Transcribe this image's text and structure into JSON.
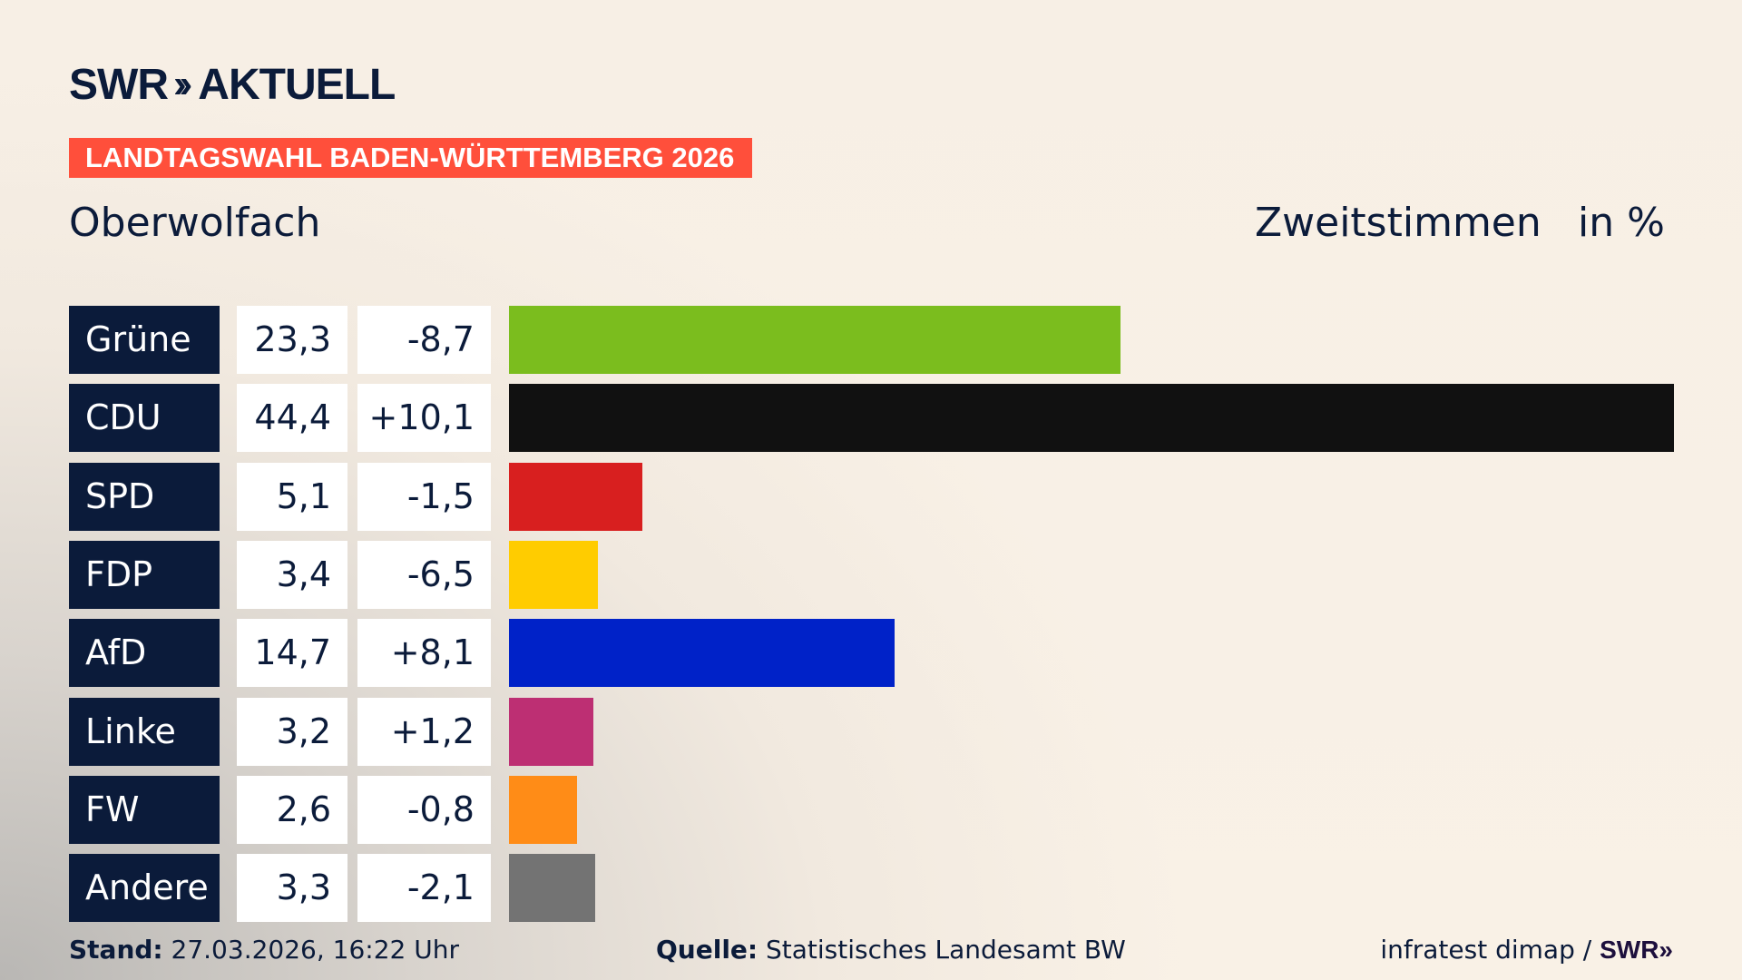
{
  "header": {
    "logo_text": "SWR",
    "logo_suffix": "AKTUELL",
    "banner": "LANDTAGSWAHL BADEN-WÜRTTEMBERG 2026",
    "region": "Oberwolfach",
    "measure": "Zweitstimmen",
    "unit": "in %"
  },
  "chart_data": {
    "type": "bar",
    "orientation": "horizontal",
    "categories": [
      "Grüne",
      "CDU",
      "SPD",
      "FDP",
      "AfD",
      "Linke",
      "FW",
      "Andere"
    ],
    "values": [
      23.3,
      44.4,
      5.1,
      3.4,
      14.7,
      3.2,
      2.6,
      3.3
    ],
    "value_labels": [
      "23,3",
      "44,4",
      "5,1",
      "3,4",
      "14,7",
      "3,2",
      "2,6",
      "3,3"
    ],
    "change_labels": [
      "-8,7",
      "+10,1",
      "-1,5",
      "-6,5",
      "+8,1",
      "+1,2",
      "-0,8",
      "-2,1"
    ],
    "changes": [
      -8.7,
      10.1,
      -1.5,
      -6.5,
      8.1,
      1.2,
      -0.8,
      -2.1
    ],
    "colors": [
      "#7bbd1e",
      "#111111",
      "#d81f1f",
      "#ffcc00",
      "#0022c8",
      "#bd2f73",
      "#ff8c17",
      "#737373"
    ],
    "xlim": [
      0,
      44.4
    ],
    "grid": false
  },
  "footer": {
    "stand_label": "Stand:",
    "stand_value": "27.03.2026, 16:22 Uhr",
    "source_label": "Quelle:",
    "source_value": "Statistisches Landesamt BW",
    "credit": "infratest dimap /",
    "credit_logo": "SWR"
  }
}
